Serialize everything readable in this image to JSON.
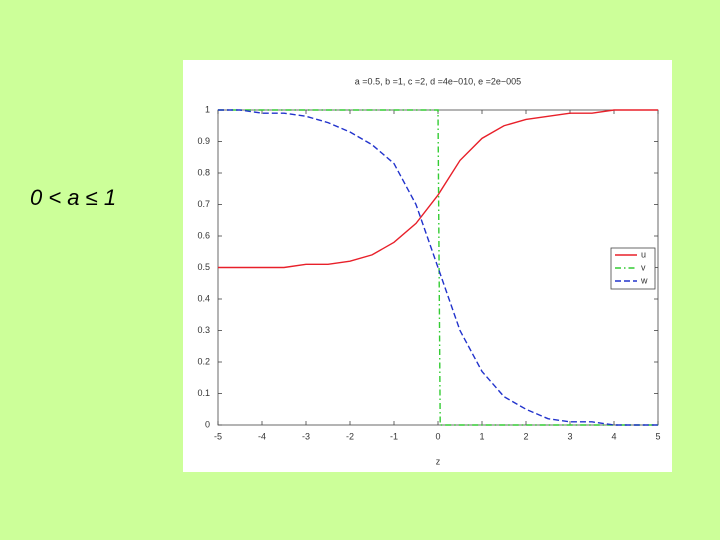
{
  "label": "0 < a ≤ 1",
  "chart_data": {
    "type": "line",
    "title": "a =0.5, b =1, c =2, d =4e−010, e =2e−005",
    "x_label": "z",
    "x": [
      -5,
      -4.5,
      -4,
      -3.5,
      -3,
      -2.5,
      -2,
      -1.5,
      -1,
      -0.5,
      0,
      0.5,
      1,
      1.5,
      2,
      2.5,
      3,
      3.5,
      4,
      4.5,
      5
    ],
    "series": [
      {
        "name": "u",
        "color": "#e8202a",
        "dash": "solid",
        "values": [
          0.5,
          0.5,
          0.5,
          0.5,
          0.51,
          0.51,
          0.52,
          0.54,
          0.58,
          0.64,
          0.73,
          0.84,
          0.91,
          0.95,
          0.97,
          0.98,
          0.99,
          0.99,
          1,
          1,
          1
        ]
      },
      {
        "name": "v",
        "color": "#33cc33",
        "dash": "dashdot",
        "x": [
          -5,
          0,
          0.05,
          5
        ],
        "values": [
          1,
          1,
          0,
          0
        ]
      },
      {
        "name": "w",
        "color": "#2233cc",
        "dash": "dashed",
        "values": [
          1,
          1,
          0.99,
          0.99,
          0.98,
          0.96,
          0.93,
          0.89,
          0.83,
          0.7,
          0.5,
          0.3,
          0.17,
          0.09,
          0.05,
          0.02,
          0.01,
          0.01,
          0,
          0,
          0
        ]
      }
    ],
    "xlim": [
      -5,
      5
    ],
    "xticks": [
      -5,
      -4,
      -3,
      -2,
      -1,
      0,
      1,
      2,
      3,
      4,
      5
    ],
    "ylim": [
      0,
      1
    ],
    "yticks": [
      0,
      0.1,
      0.2,
      0.3,
      0.4,
      0.5,
      0.6,
      0.7,
      0.8,
      0.9,
      1
    ],
    "grid": false,
    "legend": "right"
  }
}
